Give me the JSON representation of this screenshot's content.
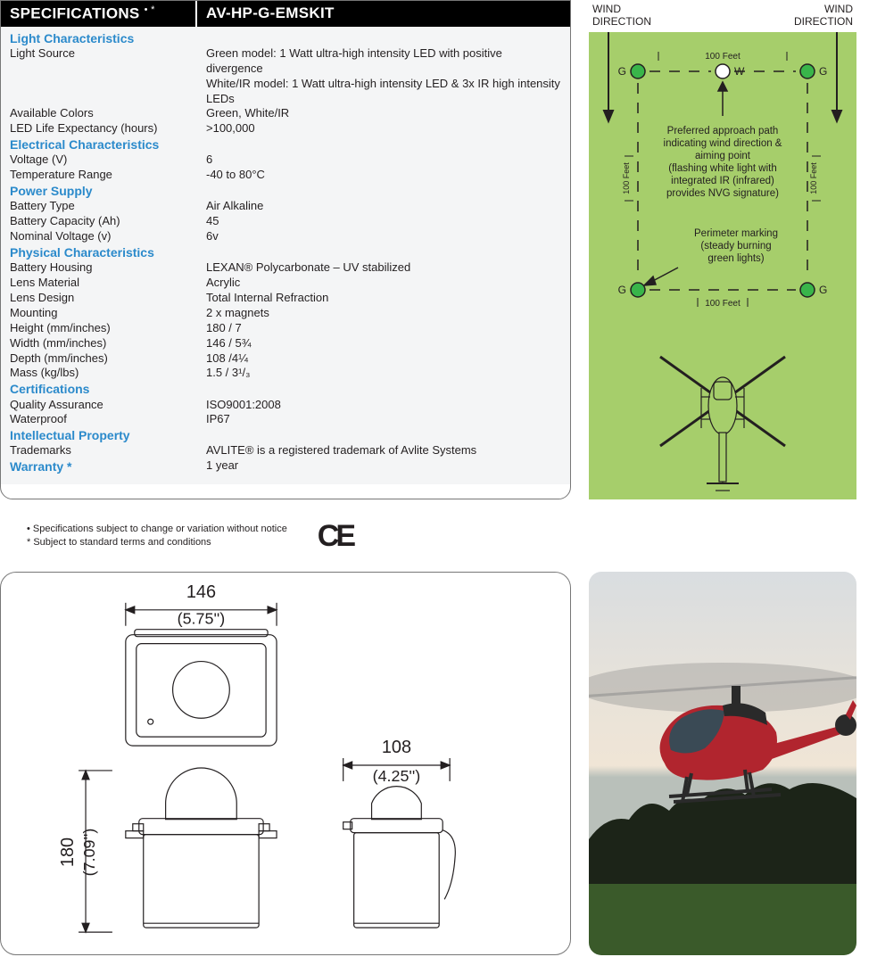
{
  "spec": {
    "header_left": "SPECIFICATIONS",
    "header_sup": "• *",
    "header_right": "AV-HP-G-EMSKIT",
    "sections": [
      {
        "title": "Light Characteristics",
        "rows": [
          {
            "label": "Light Source",
            "value": "Green model: 1 Watt ultra-high intensity LED with positive divergence",
            "value2": "White/IR model: 1 Watt ultra-high intensity LED & 3x IR high intensity LEDs"
          },
          {
            "label": "Available Colors",
            "value": "Green, White/IR"
          },
          {
            "label": "LED Life Expectancy (hours)",
            "value": ">100,000"
          }
        ]
      },
      {
        "title": "Electrical Characteristics",
        "rows": [
          {
            "label": "Voltage (V)",
            "value": "6"
          },
          {
            "label": "Temperature Range",
            "value": "-40 to 80°C"
          }
        ]
      },
      {
        "title": "Power Supply",
        "rows": [
          {
            "label": "Battery Type",
            "value": "Air Alkaline"
          },
          {
            "label": "Battery Capacity (Ah)",
            "value": "45"
          },
          {
            "label": "Nominal Voltage (v)",
            "value": "6v"
          }
        ]
      },
      {
        "title": "Physical Characteristics",
        "rows": [
          {
            "label": "Battery Housing",
            "value": "LEXAN® Polycarbonate – UV stabilized"
          },
          {
            "label": "Lens Material",
            "value": "Acrylic"
          },
          {
            "label": "Lens Design",
            "value": "Total Internal Refraction"
          },
          {
            "label": "Mounting",
            "value": "2 x magnets"
          },
          {
            "label": "Height (mm/inches)",
            "value": "180 / 7"
          },
          {
            "label": "Width (mm/inches)",
            "value": "146 / 5¾"
          },
          {
            "label": "Depth (mm/inches)",
            "value": "108 /4¼"
          },
          {
            "label": "Mass (kg/lbs)",
            "value": "1.5 / 3¹/₃"
          }
        ]
      },
      {
        "title": "Certifications",
        "rows": [
          {
            "label": "Quality Assurance",
            "value": "ISO9001:2008"
          },
          {
            "label": "Waterproof",
            "value": "IP67"
          }
        ]
      },
      {
        "title": "Intellectual Property",
        "rows": [
          {
            "label": "Trademarks",
            "value": "AVLITE® is a registered trademark of Avlite Systems"
          }
        ]
      },
      {
        "title": "Warranty *",
        "rows": [],
        "inline_value": "1 year"
      }
    ],
    "notes": [
      "•  Specifications subject to change or variation without notice",
      "*  Subject to standard terms and conditions"
    ],
    "ce_mark": "CE"
  },
  "diagram": {
    "bg_color": "#a6ce6b",
    "wind_label": "WIND\nDIRECTION",
    "light_color_green": "#39b54a",
    "light_stroke": "#231f20",
    "light_color_white": "#ffffff",
    "distance_label": "100 Feet",
    "g_label": "G",
    "w_label": "W",
    "approach_text": "Preferred approach path\nindicating wind direction &\naiming point\n(flashing white light with\nintegrated IR (infrared)\nprovides NVG signature)",
    "perimeter_text": "Perimeter marking\n(steady burning\ngreen lights)",
    "heli_color": "#231f20"
  },
  "tech": {
    "width_mm": "146",
    "width_in": "(5.75'')",
    "depth_mm": "108",
    "depth_in": "(4.25'')",
    "height_mm": "180",
    "height_in": "(7.09'')",
    "line_color": "#231f20",
    "fill_gray": "#e5e5e5"
  },
  "photo": {
    "sky_top": "#d9dde0",
    "sky_mid": "#e9e3d9",
    "sky_low": "#f0e5d6",
    "horizon": "#b9c0ba",
    "tree_color": "#1c2418",
    "grass_color": "#3a5a2a",
    "heli_body": "#b1252e",
    "heli_dark": "#2a2a2a",
    "heli_window": "#3a4a55",
    "rotor_blur": "#888888"
  }
}
